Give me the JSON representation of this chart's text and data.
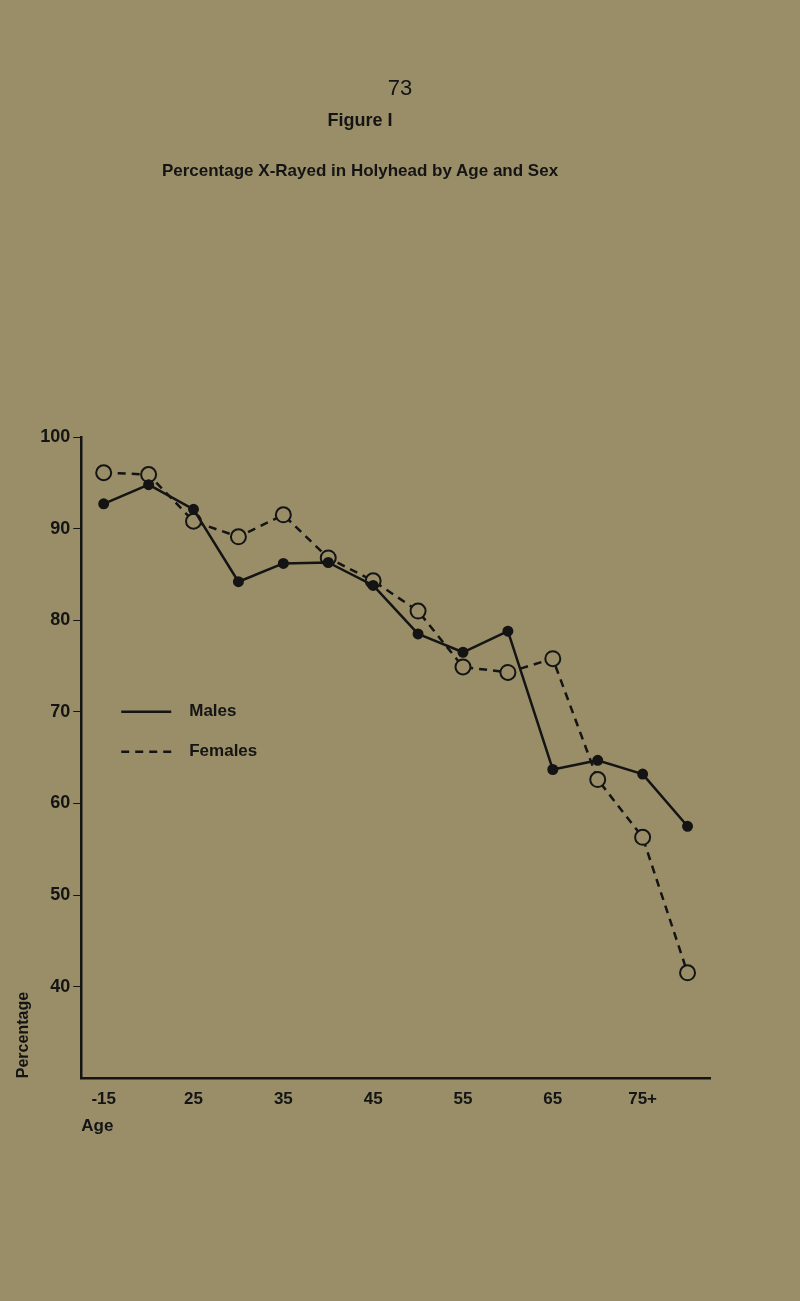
{
  "chart_data": {
    "type": "line",
    "title": "Figure I",
    "subtitle": "Percentage X-Rayed in Holyhead by Age and Sex",
    "xlabel": "Age",
    "ylabel": "Percentage",
    "annotations": [
      "73"
    ],
    "categories": [
      "-15",
      null,
      "25",
      null,
      "35",
      null,
      "45",
      null,
      "55",
      null,
      "65",
      null,
      "75+",
      null
    ],
    "series": [
      {
        "name": "Males",
        "color": "#141414",
        "line_style": "solid",
        "values": [
          92.7,
          94.8,
          92.1,
          84.2,
          86.2,
          86.3,
          83.8,
          78.5,
          76.5,
          78.8,
          63.7,
          64.7,
          63.2,
          57.5
        ]
      },
      {
        "name": "Females",
        "color": "#141414",
        "line_style": "dashed",
        "values": [
          96.1,
          95.9,
          90.8,
          89.1,
          91.5,
          86.8,
          84.3,
          81.0,
          74.9,
          74.3,
          75.8,
          62.6,
          56.3,
          41.5
        ]
      }
    ],
    "ylim": [
      30,
      100
    ],
    "yticks": [
      40,
      50,
      60,
      70,
      80,
      90,
      100
    ],
    "grid": false,
    "legend": "left",
    "marker": "circle"
  }
}
